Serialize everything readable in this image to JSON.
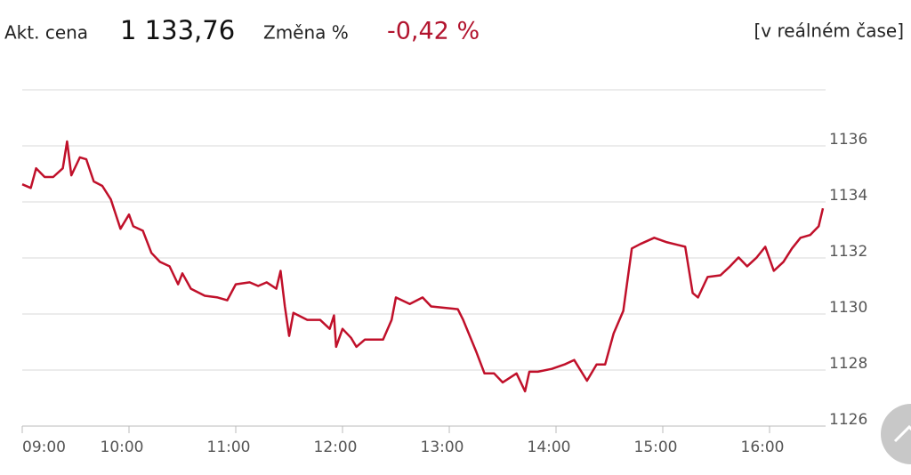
{
  "header": {
    "price_label": "Akt. cena",
    "price": "1 133,76",
    "change_label": "Změna %",
    "change": "-0,42 %",
    "mode": "[v reálném čase]"
  },
  "chart_data": {
    "type": "line",
    "x": [
      9.0,
      9.08,
      9.13,
      9.21,
      9.29,
      9.38,
      9.42,
      9.46,
      9.54,
      9.6,
      9.67,
      9.75,
      9.83,
      9.92,
      10.0,
      10.04,
      10.13,
      10.21,
      10.29,
      10.38,
      10.46,
      10.5,
      10.58,
      10.71,
      10.83,
      10.92,
      11.0,
      11.13,
      11.21,
      11.29,
      11.38,
      11.42,
      11.46,
      11.5,
      11.54,
      11.67,
      11.79,
      11.88,
      11.92,
      11.94,
      12.0,
      12.08,
      12.13,
      12.21,
      12.38,
      12.46,
      12.5,
      12.63,
      12.75,
      12.83,
      13.08,
      13.13,
      13.25,
      13.33,
      13.42,
      13.5,
      13.63,
      13.71,
      13.75,
      13.83,
      13.96,
      14.08,
      14.17,
      14.29,
      14.38,
      14.46,
      14.54,
      14.63,
      14.71,
      14.79,
      14.92,
      15.04,
      15.21,
      15.28,
      15.33,
      15.42,
      15.54,
      15.63,
      15.71,
      15.79,
      15.88,
      15.96,
      16.04,
      16.13,
      16.21,
      16.29,
      16.38,
      16.46,
      16.5
    ],
    "series": [
      {
        "color": "#c0102a",
        "values": [
          1134.63,
          1134.5,
          1135.2,
          1134.89,
          1134.89,
          1135.2,
          1136.16,
          1134.95,
          1135.59,
          1135.52,
          1134.73,
          1134.57,
          1134.09,
          1133.04,
          1133.55,
          1133.13,
          1132.97,
          1132.18,
          1131.86,
          1131.7,
          1131.06,
          1131.45,
          1130.9,
          1130.65,
          1130.59,
          1130.49,
          1131.06,
          1131.13,
          1131.0,
          1131.13,
          1130.9,
          1131.54,
          1130.27,
          1129.22,
          1130.04,
          1129.79,
          1129.79,
          1129.47,
          1129.95,
          1128.83,
          1129.47,
          1129.15,
          1128.83,
          1129.09,
          1129.09,
          1129.79,
          1130.59,
          1130.36,
          1130.59,
          1130.27,
          1130.17,
          1129.79,
          1128.68,
          1127.88,
          1127.88,
          1127.56,
          1127.88,
          1127.24,
          1127.94,
          1127.94,
          1128.04,
          1128.2,
          1128.36,
          1127.62,
          1128.2,
          1128.2,
          1129.31,
          1130.11,
          1132.34,
          1132.5,
          1132.72,
          1132.56,
          1132.4,
          1130.75,
          1130.59,
          1131.32,
          1131.38,
          1131.7,
          1132.02,
          1131.7,
          1132.02,
          1132.4,
          1131.54,
          1131.86,
          1132.34,
          1132.72,
          1132.82,
          1133.13,
          1133.77
        ]
      }
    ],
    "xlim": [
      9,
      16.5
    ],
    "xticks": [
      {
        "value": 9,
        "label": "09:00"
      },
      {
        "value": 10,
        "label": "10:00"
      },
      {
        "value": 11,
        "label": "11:00"
      },
      {
        "value": 12,
        "label": "12:00"
      },
      {
        "value": 13,
        "label": "13:00"
      },
      {
        "value": 14,
        "label": "14:00"
      },
      {
        "value": 15,
        "label": "15:00"
      },
      {
        "value": 16,
        "label": "16:00"
      }
    ],
    "ylim": [
      1126,
      1138
    ],
    "yticks": [
      1126,
      1128,
      1130,
      1132,
      1134,
      1136
    ],
    "grid": true
  }
}
